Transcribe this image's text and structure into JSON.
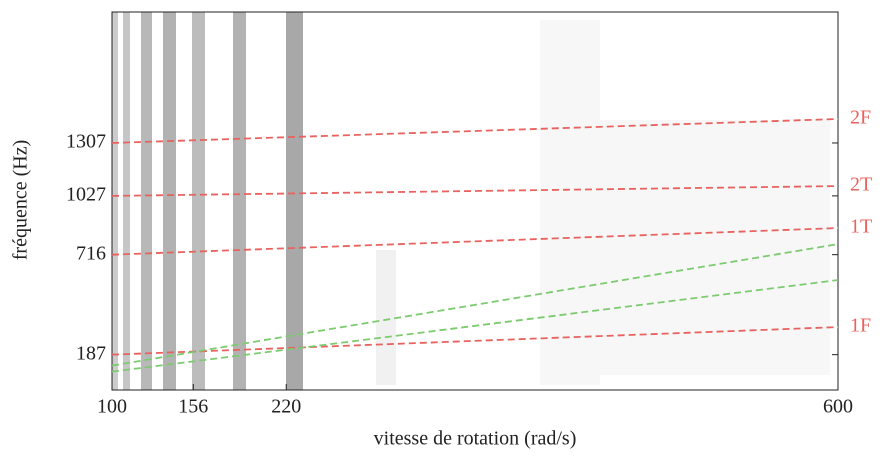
{
  "chart_data": {
    "type": "line",
    "x_label": "vitesse de rotation (rad/s)",
    "y_label": "fréquence (Hz)",
    "x": [
      100,
      600
    ],
    "series": [
      {
        "name": "1F",
        "color": "#e8635f",
        "values": [
          187,
          333
        ]
      },
      {
        "name": "1T",
        "color": "#e8635f",
        "values": [
          716,
          857
        ]
      },
      {
        "name": "2T",
        "color": "#e8635f",
        "values": [
          1027,
          1079
        ]
      },
      {
        "name": "2F",
        "color": "#e8635f",
        "values": [
          1307,
          1434
        ]
      },
      {
        "color": "#7ccb6f",
        "values": [
          129,
          772
        ]
      },
      {
        "color": "#7ccb6f",
        "values": [
          97,
          582
        ]
      }
    ],
    "xlim": [
      100,
      600
    ],
    "xticks": [
      100,
      156,
      220,
      600
    ],
    "ylim": [
      0,
      2000
    ],
    "yticks": [
      187,
      716,
      1027,
      1307
    ],
    "dashed": true
  }
}
